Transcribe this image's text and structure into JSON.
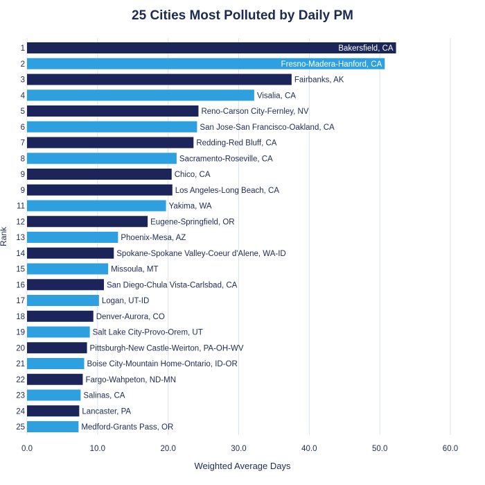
{
  "chart_data": {
    "type": "bar",
    "orientation": "horizontal",
    "title": "25 Cities Most Polluted by Daily PM",
    "xlabel": "Weighted Average Days",
    "ylabel": "Rank",
    "xlim": [
      0,
      60
    ],
    "xticks": [
      "0.0",
      "10.0",
      "20.0",
      "30.0",
      "40.0",
      "50.0",
      "60.0"
    ],
    "grid": "vertical",
    "colors": {
      "dark": "#1b2559",
      "light": "#2fa0df",
      "grid": "#dbe3ee",
      "text": "#1e2a52"
    },
    "ranks": [
      "1",
      "2",
      "3",
      "4",
      "5",
      "6",
      "7",
      "8",
      "9",
      "9",
      "11",
      "12",
      "13",
      "14",
      "15",
      "16",
      "17",
      "18",
      "19",
      "20",
      "21",
      "22",
      "23",
      "24",
      "25"
    ],
    "categories": [
      "Bakersfield, CA",
      "Fresno-Madera-Hanford, CA",
      "Fairbanks, AK",
      "Visalia, CA",
      "Reno-Carson City-Fernley, NV",
      "San Jose-San Francisco-Oakland, CA",
      "Redding-Red Bluff, CA",
      "Sacramento-Roseville, CA",
      "Chico, CA",
      "Los Angeles-Long Beach, CA",
      "Yakima, WA",
      "Eugene-Springfield, OR",
      "Phoenix-Mesa, AZ",
      "Spokane-Spokane Valley-Coeur d'Alene, WA-ID",
      "Missoula, MT",
      "San Diego-Chula Vista-Carlsbad, CA",
      "Logan, UT-ID",
      "Denver-Aurora, CO",
      "Salt Lake City-Provo-Orem, UT",
      "Pittsburgh-New Castle-Weirton, PA-OH-WV",
      "Boise City-Mountain Home-Ontario, ID-OR",
      "Fargo-Wahpeton, ND-MN",
      "Salinas, CA",
      "Lancaster, PA",
      "Medford-Grants Pass, OR"
    ],
    "values": [
      52.3,
      50.7,
      37.5,
      32.2,
      24.3,
      24.1,
      23.6,
      21.2,
      20.5,
      20.6,
      19.7,
      17.1,
      12.9,
      12.3,
      11.5,
      10.9,
      10.2,
      9.4,
      8.9,
      8.5,
      8.1,
      7.9,
      7.6,
      7.4,
      7.3
    ],
    "bar_colors": [
      "dark",
      "light",
      "dark",
      "light",
      "dark",
      "light",
      "dark",
      "light",
      "dark",
      "dark",
      "light",
      "dark",
      "light",
      "dark",
      "light",
      "dark",
      "light",
      "dark",
      "light",
      "dark",
      "light",
      "dark",
      "light",
      "dark",
      "light"
    ],
    "label_inside": [
      true,
      true,
      false,
      false,
      false,
      false,
      false,
      false,
      false,
      false,
      false,
      false,
      false,
      false,
      false,
      false,
      false,
      false,
      false,
      false,
      false,
      false,
      false,
      false,
      false
    ]
  }
}
